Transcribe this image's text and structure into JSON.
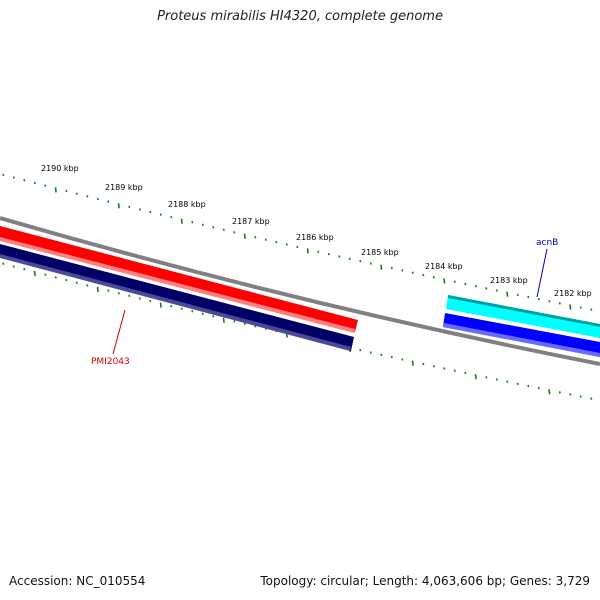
{
  "title": "Proteus mirabilis HI4320, complete genome",
  "footer": {
    "accession": "Accession: NC_010554",
    "summary": "Topology: circular; Length: 4,063,606 bp; Genes: 3,729"
  },
  "ticks": [
    "2190 kbp",
    "2189 kbp",
    "2188 kbp",
    "2187 kbp",
    "2186 kbp",
    "2185 kbp",
    "2184 kbp",
    "2183 kbp",
    "2182 kbp"
  ],
  "genes": [
    {
      "name": "PMI2043",
      "color": "#cc0000",
      "fill": "#ff0000"
    },
    {
      "name": "acnB",
      "color": "#0000aa",
      "fill": "#00ffff"
    }
  ],
  "colors": {
    "backbone": "#808080",
    "tick": "#1a7a1a",
    "forward_strand_a": "#ff0000",
    "reverse_strand_a": "#000066",
    "forward_strand_b": "#00ffff",
    "reverse_strand_b": "#0000ff"
  }
}
